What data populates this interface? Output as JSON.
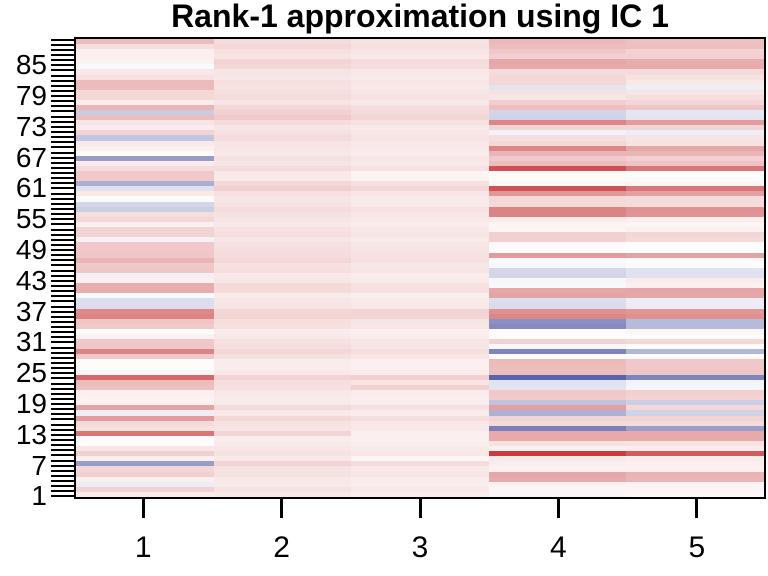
{
  "chart_data": {
    "type": "heatmap",
    "title": "Rank-1 approximation using IC 1",
    "x_categories": [
      "1",
      "2",
      "3",
      "4",
      "5"
    ],
    "y_tick_labels": [
      "85",
      "79",
      "73",
      "67",
      "61",
      "55",
      "49",
      "43",
      "37",
      "31",
      "25",
      "19",
      "13",
      "7",
      "1"
    ],
    "n_rows": 90,
    "n_cols": 5,
    "row_order": "top_to_bottom (row 90 at top, row 1 at bottom); one y tick per row",
    "value_range": [
      -1,
      1
    ],
    "colormap": {
      "negative_end": "#5860a8",
      "zero": "#ffffff",
      "positive_end": "#c83c3e"
    },
    "grid": false,
    "matrix": [
      [
        0.35,
        0.18,
        0.15,
        0.36,
        0.32
      ],
      [
        0.17,
        0.2,
        0.16,
        0.34,
        0.33
      ],
      [
        0.08,
        0.16,
        0.13,
        0.28,
        0.23
      ],
      [
        0.08,
        0.14,
        0.12,
        0.24,
        0.24
      ],
      [
        0.07,
        0.22,
        0.18,
        0.45,
        0.42
      ],
      [
        -0.03,
        0.2,
        0.17,
        0.44,
        0.43
      ],
      [
        0.12,
        0.14,
        0.12,
        0.18,
        0.19
      ],
      [
        0.16,
        0.13,
        0.11,
        0.2,
        0.15
      ],
      [
        0.35,
        0.16,
        0.13,
        0.2,
        0.12
      ],
      [
        0.35,
        0.15,
        0.12,
        -0.17,
        -0.1
      ],
      [
        0.2,
        0.17,
        0.14,
        0.15,
        0.13
      ],
      [
        0.2,
        0.18,
        0.15,
        0.13,
        0.17
      ],
      [
        0.1,
        0.14,
        0.12,
        0.25,
        0.21
      ],
      [
        0.38,
        0.2,
        0.17,
        0.33,
        0.29
      ],
      [
        -0.33,
        0.24,
        0.19,
        -0.27,
        -0.16
      ],
      [
        0.34,
        0.27,
        0.21,
        -0.28,
        -0.17
      ],
      [
        0.14,
        0.18,
        0.15,
        0.62,
        0.51
      ],
      [
        0.1,
        0.13,
        0.11,
        0.22,
        0.22
      ],
      [
        0.22,
        0.16,
        0.13,
        -0.08,
        -0.1
      ],
      [
        -0.36,
        0.18,
        0.14,
        0.17,
        0.14
      ],
      [
        0.11,
        0.14,
        0.12,
        0.2,
        0.15
      ],
      [
        0.08,
        0.13,
        0.11,
        0.62,
        0.45
      ],
      [
        0.02,
        0.12,
        0.1,
        0.38,
        0.38
      ],
      [
        -0.62,
        0.16,
        0.13,
        0.27,
        0.24
      ],
      [
        0.1,
        0.14,
        0.12,
        0.34,
        0.31
      ],
      [
        0.18,
        0.18,
        0.15,
        0.9,
        0.7
      ],
      [
        0.28,
        0.12,
        0.06,
        0.03,
        0.02
      ],
      [
        0.27,
        0.11,
        0.06,
        0.02,
        0.02
      ],
      [
        -0.51,
        0.2,
        0.16,
        0.04,
        0.05
      ],
      [
        -0.19,
        0.25,
        0.2,
        0.88,
        0.7
      ],
      [
        0.11,
        0.16,
        0.13,
        0.54,
        0.48
      ],
      [
        0.02,
        0.13,
        0.11,
        0.2,
        0.18
      ],
      [
        -0.26,
        0.15,
        0.12,
        0.19,
        0.18
      ],
      [
        -0.31,
        0.18,
        0.15,
        0.63,
        0.56
      ],
      [
        0.17,
        0.16,
        0.13,
        0.63,
        0.55
      ],
      [
        0.21,
        0.14,
        0.12,
        0.1,
        0.08
      ],
      [
        0.08,
        0.12,
        0.1,
        0.06,
        0.05
      ],
      [
        0.23,
        0.15,
        0.12,
        0.05,
        0.08
      ],
      [
        0.23,
        0.17,
        0.14,
        0.24,
        0.21
      ],
      [
        -0.08,
        0.13,
        0.11,
        0.24,
        0.19
      ],
      [
        0.28,
        0.16,
        0.13,
        0.03,
        0.02
      ],
      [
        0.28,
        0.17,
        0.14,
        0.02,
        0.01
      ],
      [
        0.29,
        0.18,
        0.15,
        0.51,
        0.47
      ],
      [
        0.39,
        0.2,
        0.16,
        -0.04,
        0.02
      ],
      [
        0.28,
        0.16,
        0.13,
        -0.05,
        0.02
      ],
      [
        0.3,
        0.17,
        0.14,
        -0.25,
        -0.18
      ],
      [
        -0.09,
        0.12,
        0.1,
        -0.26,
        -0.18
      ],
      [
        0.08,
        0.13,
        0.11,
        -0.05,
        0.1
      ],
      [
        0.42,
        0.19,
        0.16,
        -0.04,
        0.08
      ],
      [
        0.42,
        0.19,
        0.16,
        0.45,
        0.46
      ],
      [
        -0.04,
        0.11,
        0.09,
        0.47,
        0.45
      ],
      [
        -0.21,
        0.13,
        0.11,
        -0.21,
        -0.11
      ],
      [
        -0.21,
        0.14,
        0.12,
        -0.23,
        -0.12
      ],
      [
        0.61,
        0.21,
        0.22,
        0.57,
        0.54
      ],
      [
        0.63,
        0.22,
        0.22,
        0.62,
        0.57
      ],
      [
        0.3,
        0.17,
        0.14,
        -0.7,
        -0.43
      ],
      [
        0.27,
        0.16,
        0.13,
        -0.73,
        -0.43
      ],
      [
        0.02,
        0.1,
        0.08,
        0.02,
        0.05
      ],
      [
        0.07,
        0.12,
        0.1,
        0.02,
        0.02
      ],
      [
        0.28,
        0.16,
        0.13,
        0.23,
        0.2
      ],
      [
        0.29,
        0.17,
        0.14,
        -0.05,
        0.02
      ],
      [
        0.63,
        0.21,
        0.17,
        -0.77,
        -0.46
      ],
      [
        0.28,
        0.16,
        0.13,
        -0.02,
        0.02
      ],
      [
        0.02,
        0.1,
        0.08,
        0.35,
        0.28
      ],
      [
        0.02,
        0.1,
        0.08,
        0.34,
        0.28
      ],
      [
        0.05,
        0.12,
        0.1,
        0.34,
        0.29
      ],
      [
        0.78,
        0.23,
        0.24,
        -0.98,
        -0.77
      ],
      [
        0.35,
        0.17,
        0.14,
        -0.18,
        -0.07
      ],
      [
        0.32,
        0.16,
        0.24,
        -0.17,
        -0.06
      ],
      [
        0.08,
        0.12,
        0.1,
        0.28,
        0.24
      ],
      [
        0.07,
        0.11,
        0.09,
        0.27,
        0.23
      ],
      [
        0.07,
        0.11,
        0.09,
        -0.38,
        -0.31
      ],
      [
        0.47,
        0.19,
        0.16,
        0.49,
        0.2
      ],
      [
        -0.1,
        0.12,
        0.1,
        -0.49,
        -0.28
      ],
      [
        0.51,
        0.2,
        0.17,
        0.22,
        0.22
      ],
      [
        0.19,
        0.15,
        0.12,
        0.19,
        0.18
      ],
      [
        0.15,
        0.14,
        0.12,
        -0.8,
        -0.6
      ],
      [
        0.71,
        0.22,
        0.08,
        0.44,
        0.44
      ],
      [
        -0.03,
        0.1,
        0.08,
        0.44,
        0.44
      ],
      [
        0.02,
        0.11,
        0.09,
        0.15,
        0.15
      ],
      [
        0.13,
        0.13,
        0.11,
        0.08,
        0.1
      ],
      [
        0.24,
        0.15,
        0.12,
        1.0,
        0.84
      ],
      [
        0.08,
        0.12,
        0.05,
        0.11,
        0.1
      ],
      [
        -0.62,
        0.22,
        0.18,
        0.09,
        0.08
      ],
      [
        0.21,
        0.15,
        0.12,
        0.08,
        0.08
      ],
      [
        0.24,
        0.16,
        0.13,
        0.45,
        0.39
      ],
      [
        0.08,
        0.12,
        0.1,
        0.43,
        0.38
      ],
      [
        -0.12,
        0.11,
        0.09,
        0.07,
        0.06
      ],
      [
        0.23,
        0.15,
        0.12,
        0.05,
        0.05
      ],
      [
        0.1,
        0.12,
        0.1,
        0.05,
        0.04
      ]
    ]
  }
}
